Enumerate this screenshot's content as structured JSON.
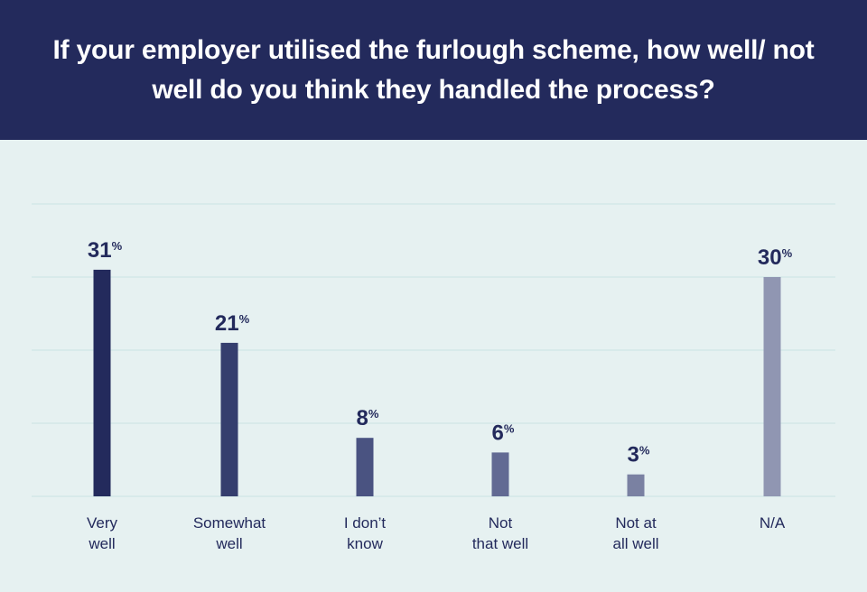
{
  "chart_data": {
    "type": "bar",
    "title": "If your employer utilised the furlough scheme, how well/ not well do you think they handled the process?",
    "categories": [
      [
        "Very",
        "well"
      ],
      [
        "Somewhat",
        "well"
      ],
      [
        "I don’t",
        "know"
      ],
      [
        "Not",
        "that well"
      ],
      [
        "Not at",
        "all well"
      ],
      [
        "N/A"
      ]
    ],
    "values": [
      31,
      21,
      8,
      6,
      3,
      30
    ],
    "unit": "%",
    "ylim": [
      0,
      40
    ],
    "grid": true,
    "colors": [
      "#232a5c",
      "#353e6e",
      "#4a5381",
      "#626a93",
      "#7a81a2",
      "#9096b2"
    ],
    "text_color": "#232a5c",
    "grid_color": "#d3e7e7"
  }
}
